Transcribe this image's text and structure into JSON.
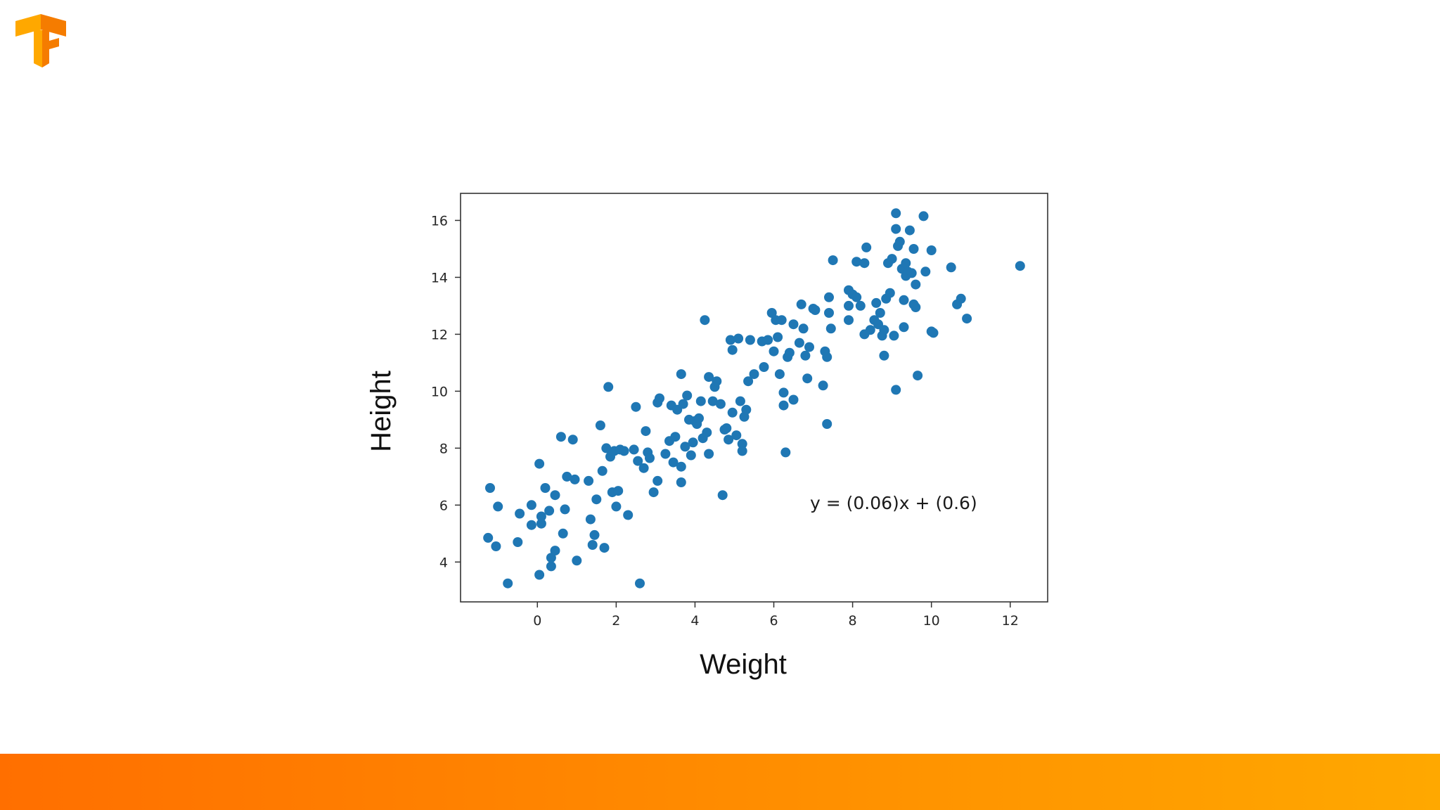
{
  "colors": {
    "point": "#1f77b4",
    "frame": "#333333",
    "logo_light": "#FFA800",
    "logo_dark": "#F57C00",
    "bar_start": "#FF6F00",
    "bar_end": "#FFA800"
  },
  "logo": {
    "icon": "tensorflow-logo-icon"
  },
  "chart_data": {
    "type": "scatter",
    "xlabel": "Weight",
    "ylabel": "Height",
    "xlim": [
      -1.95,
      12.95
    ],
    "ylim": [
      2.6,
      16.95
    ],
    "xticks": [
      0,
      2,
      4,
      6,
      8,
      10,
      12
    ],
    "yticks": [
      4,
      6,
      8,
      10,
      12,
      14,
      16
    ],
    "grid": false,
    "annotation": "y = (0.06)x + (0.6)",
    "points": [
      [
        -1.25,
        4.85
      ],
      [
        -1.2,
        6.6
      ],
      [
        -1.05,
        4.55
      ],
      [
        -1.0,
        5.95
      ],
      [
        -0.75,
        3.25
      ],
      [
        -0.5,
        4.7
      ],
      [
        -0.45,
        5.7
      ],
      [
        -0.15,
        6.0
      ],
      [
        -0.15,
        5.3
      ],
      [
        0.05,
        3.55
      ],
      [
        0.05,
        7.45
      ],
      [
        0.1,
        5.35
      ],
      [
        0.1,
        5.6
      ],
      [
        0.2,
        6.6
      ],
      [
        0.3,
        5.8
      ],
      [
        0.35,
        3.85
      ],
      [
        0.35,
        4.15
      ],
      [
        0.45,
        6.35
      ],
      [
        0.45,
        4.4
      ],
      [
        0.6,
        8.4
      ],
      [
        0.65,
        5.0
      ],
      [
        0.7,
        5.85
      ],
      [
        0.75,
        7.0
      ],
      [
        0.9,
        8.3
      ],
      [
        0.95,
        6.9
      ],
      [
        1.0,
        4.05
      ],
      [
        1.3,
        6.85
      ],
      [
        1.35,
        5.5
      ],
      [
        1.4,
        4.6
      ],
      [
        1.45,
        4.95
      ],
      [
        1.5,
        6.2
      ],
      [
        1.6,
        8.8
      ],
      [
        1.65,
        7.2
      ],
      [
        1.7,
        4.5
      ],
      [
        1.75,
        8.0
      ],
      [
        1.8,
        10.15
      ],
      [
        1.85,
        7.7
      ],
      [
        1.9,
        6.45
      ],
      [
        1.95,
        7.9
      ],
      [
        2.0,
        5.95
      ],
      [
        2.05,
        6.5
      ],
      [
        2.1,
        7.95
      ],
      [
        2.2,
        7.9
      ],
      [
        2.3,
        5.65
      ],
      [
        2.45,
        7.95
      ],
      [
        2.5,
        9.45
      ],
      [
        2.55,
        7.55
      ],
      [
        2.6,
        3.25
      ],
      [
        2.7,
        7.3
      ],
      [
        2.75,
        8.6
      ],
      [
        2.8,
        7.85
      ],
      [
        2.85,
        7.65
      ],
      [
        2.95,
        6.45
      ],
      [
        3.05,
        9.6
      ],
      [
        3.05,
        6.85
      ],
      [
        3.1,
        9.75
      ],
      [
        3.25,
        7.8
      ],
      [
        3.35,
        8.25
      ],
      [
        3.4,
        9.5
      ],
      [
        3.45,
        7.5
      ],
      [
        3.5,
        8.4
      ],
      [
        3.55,
        9.35
      ],
      [
        3.65,
        7.35
      ],
      [
        3.65,
        6.8
      ],
      [
        3.65,
        10.6
      ],
      [
        3.7,
        9.55
      ],
      [
        3.75,
        8.05
      ],
      [
        3.8,
        9.85
      ],
      [
        3.85,
        9.0
      ],
      [
        3.9,
        7.75
      ],
      [
        3.95,
        8.2
      ],
      [
        4.0,
        8.95
      ],
      [
        4.05,
        8.85
      ],
      [
        4.1,
        9.05
      ],
      [
        4.15,
        9.65
      ],
      [
        4.2,
        8.35
      ],
      [
        4.25,
        12.5
      ],
      [
        4.3,
        8.55
      ],
      [
        4.35,
        10.5
      ],
      [
        4.35,
        7.8
      ],
      [
        4.45,
        9.65
      ],
      [
        4.5,
        10.15
      ],
      [
        4.55,
        10.35
      ],
      [
        4.65,
        9.55
      ],
      [
        4.7,
        6.35
      ],
      [
        4.75,
        8.65
      ],
      [
        4.8,
        8.7
      ],
      [
        4.85,
        8.3
      ],
      [
        4.9,
        11.8
      ],
      [
        4.95,
        11.45
      ],
      [
        4.95,
        9.25
      ],
      [
        5.05,
        8.45
      ],
      [
        5.1,
        11.85
      ],
      [
        5.15,
        9.65
      ],
      [
        5.2,
        8.15
      ],
      [
        5.2,
        7.9
      ],
      [
        5.25,
        9.1
      ],
      [
        5.3,
        9.35
      ],
      [
        5.35,
        10.35
      ],
      [
        5.4,
        11.8
      ],
      [
        5.5,
        10.6
      ],
      [
        5.7,
        11.75
      ],
      [
        5.75,
        10.85
      ],
      [
        5.85,
        11.8
      ],
      [
        5.95,
        12.75
      ],
      [
        6.0,
        11.4
      ],
      [
        6.05,
        12.5
      ],
      [
        6.1,
        11.9
      ],
      [
        6.15,
        10.6
      ],
      [
        6.2,
        12.5
      ],
      [
        6.25,
        9.95
      ],
      [
        6.25,
        9.5
      ],
      [
        6.3,
        7.85
      ],
      [
        6.35,
        11.2
      ],
      [
        6.4,
        11.35
      ],
      [
        6.5,
        12.35
      ],
      [
        6.5,
        9.7
      ],
      [
        6.65,
        11.7
      ],
      [
        6.7,
        13.05
      ],
      [
        6.75,
        12.2
      ],
      [
        6.8,
        11.25
      ],
      [
        6.85,
        10.45
      ],
      [
        6.9,
        11.55
      ],
      [
        7.0,
        12.9
      ],
      [
        7.05,
        12.85
      ],
      [
        7.25,
        10.2
      ],
      [
        7.3,
        11.4
      ],
      [
        7.35,
        11.2
      ],
      [
        7.35,
        8.85
      ],
      [
        7.4,
        13.3
      ],
      [
        7.4,
        12.75
      ],
      [
        7.45,
        12.2
      ],
      [
        7.5,
        14.6
      ],
      [
        7.9,
        13.55
      ],
      [
        7.9,
        13.0
      ],
      [
        7.9,
        12.5
      ],
      [
        8.0,
        13.4
      ],
      [
        8.1,
        14.55
      ],
      [
        8.1,
        13.3
      ],
      [
        8.2,
        13.0
      ],
      [
        8.3,
        14.5
      ],
      [
        8.3,
        12.0
      ],
      [
        8.35,
        15.05
      ],
      [
        8.45,
        12.15
      ],
      [
        8.55,
        12.5
      ],
      [
        8.6,
        13.1
      ],
      [
        8.65,
        12.35
      ],
      [
        8.7,
        12.75
      ],
      [
        8.75,
        11.95
      ],
      [
        8.8,
        11.25
      ],
      [
        8.8,
        12.15
      ],
      [
        8.85,
        13.25
      ],
      [
        8.9,
        14.5
      ],
      [
        8.95,
        13.45
      ],
      [
        9.0,
        14.65
      ],
      [
        9.05,
        11.95
      ],
      [
        9.1,
        10.05
      ],
      [
        9.1,
        16.25
      ],
      [
        9.1,
        15.7
      ],
      [
        9.15,
        15.1
      ],
      [
        9.2,
        15.25
      ],
      [
        9.25,
        14.3
      ],
      [
        9.3,
        13.2
      ],
      [
        9.3,
        12.25
      ],
      [
        9.35,
        14.5
      ],
      [
        9.35,
        14.05
      ],
      [
        9.4,
        14.2
      ],
      [
        9.45,
        15.65
      ],
      [
        9.5,
        14.15
      ],
      [
        9.55,
        15.0
      ],
      [
        9.55,
        13.05
      ],
      [
        9.6,
        13.75
      ],
      [
        9.6,
        12.95
      ],
      [
        9.65,
        10.55
      ],
      [
        9.8,
        16.15
      ],
      [
        9.85,
        14.2
      ],
      [
        10.0,
        12.1
      ],
      [
        10.0,
        14.95
      ],
      [
        10.05,
        12.05
      ],
      [
        10.5,
        14.35
      ],
      [
        10.65,
        13.05
      ],
      [
        10.75,
        13.25
      ],
      [
        10.9,
        12.55
      ],
      [
        12.25,
        14.4
      ]
    ]
  }
}
